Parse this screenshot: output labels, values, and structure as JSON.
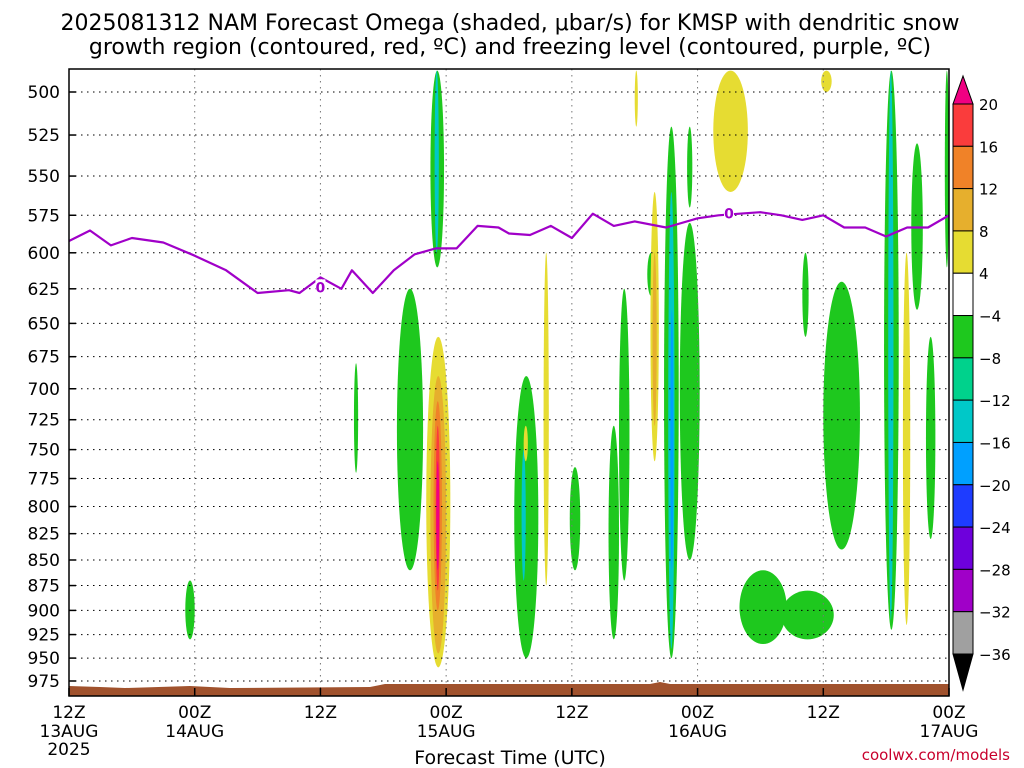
{
  "chart_data": {
    "type": "heatmap",
    "title_line1": "2025081312 NAM Forecast Omega (shaded, μbar/s) for KMSP with dendritic snow",
    "title_line2": "growth region (contoured, red, ºC) and freezing level (contoured, purple, ºC)",
    "xlabel": "Forecast Time (UTC)",
    "credit": "coolwx.com/models",
    "x_ticks": [
      {
        "hour": 0,
        "line1": "12Z",
        "line2": "13AUG",
        "line3": "2025"
      },
      {
        "hour": 12,
        "line1": "00Z",
        "line2": "14AUG",
        "line3": ""
      },
      {
        "hour": 24,
        "line1": "12Z",
        "line2": "",
        "line3": ""
      },
      {
        "hour": 36,
        "line1": "00Z",
        "line2": "15AUG",
        "line3": ""
      },
      {
        "hour": 48,
        "line1": "12Z",
        "line2": "",
        "line3": ""
      },
      {
        "hour": 60,
        "line1": "00Z",
        "line2": "16AUG",
        "line3": ""
      },
      {
        "hour": 72,
        "line1": "12Z",
        "line2": "",
        "line3": ""
      },
      {
        "hour": 84,
        "line1": "00Z",
        "line2": "17AUG",
        "line3": ""
      }
    ],
    "xlim": [
      0,
      84
    ],
    "y_ticks": [
      500,
      525,
      550,
      575,
      600,
      625,
      650,
      675,
      700,
      725,
      750,
      775,
      800,
      825,
      850,
      875,
      900,
      925,
      950,
      975
    ],
    "ylim": [
      488,
      990
    ],
    "y_scale": "log-pressure",
    "grid": true,
    "colorbar": {
      "levels": [
        -36,
        -32,
        -28,
        -24,
        -20,
        -16,
        -12,
        -8,
        -4,
        4,
        8,
        12,
        16,
        20
      ],
      "labels": [
        "20",
        "16",
        "12",
        "8",
        "4",
        "−4",
        "−8",
        "−12",
        "−16",
        "−20",
        "−24",
        "−28",
        "−32",
        "−36"
      ],
      "colors_low_to_high": [
        "#000000",
        "#a0a0a0",
        "#a000c8",
        "#6e00dc",
        "#1e3cff",
        "#00a0ff",
        "#00c8c8",
        "#00d28c",
        "#1ec81e",
        "#ffffff",
        "#e6dc32",
        "#e6af2d",
        "#f08228",
        "#fa3c3c",
        "#f00082"
      ]
    },
    "freezing_level": {
      "label": "0",
      "color": "#a000c8",
      "hours": [
        0,
        2,
        4,
        6,
        9,
        12,
        15,
        18,
        21,
        22,
        24,
        26,
        27,
        29,
        31,
        33,
        35,
        37,
        39,
        41,
        42,
        44,
        46,
        48,
        50,
        52,
        54,
        57,
        60,
        62,
        64,
        66,
        68,
        70,
        72,
        74,
        76,
        78,
        80,
        82,
        84
      ],
      "pressure": [
        592,
        585,
        595,
        590,
        593,
        602,
        612,
        628,
        626,
        628,
        617,
        625,
        612,
        628,
        612,
        601,
        597,
        597,
        582,
        583,
        587,
        588,
        582,
        590,
        574,
        582,
        579,
        583,
        577,
        575,
        574,
        573,
        575,
        578,
        575,
        583,
        583,
        589,
        583,
        583,
        575
      ]
    },
    "omega_regions": [
      {
        "value": -6,
        "h": [
          34.5,
          35.8
        ],
        "p": [
          488,
          610
        ]
      },
      {
        "value": -13,
        "h": [
          34.9,
          35.3
        ],
        "p": [
          488,
          600
        ]
      },
      {
        "value": -6,
        "h": [
          31.3,
          33.8
        ],
        "p": [
          625,
          860
        ]
      },
      {
        "value": -6,
        "h": [
          27.2,
          27.6
        ],
        "p": [
          680,
          770
        ]
      },
      {
        "value": -6,
        "h": [
          11.1,
          12.0
        ],
        "p": [
          870,
          930
        ]
      },
      {
        "value": -6,
        "h": [
          42.5,
          44.8
        ],
        "p": [
          690,
          950
        ]
      },
      {
        "value": -13,
        "h": [
          43.2,
          43.6
        ],
        "p": [
          750,
          870
        ]
      },
      {
        "value": -6,
        "h": [
          47.8,
          48.8
        ],
        "p": [
          765,
          860
        ]
      },
      {
        "value": -6,
        "h": [
          52.5,
          53.5
        ],
        "p": [
          625,
          870
        ]
      },
      {
        "value": -6,
        "h": [
          55.2,
          55.9
        ],
        "p": [
          600,
          630
        ]
      },
      {
        "value": -6,
        "h": [
          51.5,
          52.5
        ],
        "p": [
          730,
          930
        ]
      },
      {
        "value": -6,
        "h": [
          56.8,
          58.2
        ],
        "p": [
          520,
          950
        ]
      },
      {
        "value": -13,
        "h": [
          57.2,
          57.8
        ],
        "p": [
          560,
          940
        ]
      },
      {
        "value": -18,
        "h": [
          57.4,
          57.7
        ],
        "p": [
          640,
          860
        ]
      },
      {
        "value": -6,
        "h": [
          58.3,
          60.2
        ],
        "p": [
          580,
          850
        ]
      },
      {
        "value": -6,
        "h": [
          59.0,
          59.5
        ],
        "p": [
          520,
          570
        ]
      },
      {
        "value": -6,
        "h": [
          64.0,
          68.5
        ],
        "p": [
          860,
          935
        ]
      },
      {
        "value": -6,
        "h": [
          68.0,
          73.0
        ],
        "p": [
          880,
          930
        ]
      },
      {
        "value": -6,
        "h": [
          70.0,
          70.6
        ],
        "p": [
          600,
          660
        ]
      },
      {
        "value": -6,
        "h": [
          72.0,
          75.5
        ],
        "p": [
          620,
          840
        ]
      },
      {
        "value": -6,
        "h": [
          77.8,
          79.2
        ],
        "p": [
          488,
          920
        ]
      },
      {
        "value": -13,
        "h": [
          78.2,
          78.7
        ],
        "p": [
          488,
          910
        ]
      },
      {
        "value": -6,
        "h": [
          80.4,
          81.5
        ],
        "p": [
          530,
          640
        ]
      },
      {
        "value": -6,
        "h": [
          81.8,
          82.7
        ],
        "p": [
          660,
          830
        ]
      },
      {
        "value": -6,
        "h": [
          83.6,
          84.0
        ],
        "p": [
          488,
          610
        ]
      },
      {
        "value": -6,
        "h": [
          84.0,
          84.0
        ],
        "p": [
          925,
          950
        ]
      }
    ],
    "omega_positive": [
      {
        "value": 5,
        "h": [
          34.1,
          36.4
        ],
        "p": [
          660,
          960
        ]
      },
      {
        "value": 9,
        "h": [
          34.5,
          36.0
        ],
        "p": [
          690,
          945
        ]
      },
      {
        "value": 13,
        "h": [
          34.8,
          35.6
        ],
        "p": [
          710,
          900
        ]
      },
      {
        "value": 18,
        "h": [
          35.0,
          35.4
        ],
        "p": [
          730,
          880
        ]
      },
      {
        "value": 21,
        "h": [
          35.1,
          35.3
        ],
        "p": [
          760,
          860
        ]
      },
      {
        "value": 5,
        "h": [
          55.5,
          56.3
        ],
        "p": [
          560,
          760
        ]
      },
      {
        "value": 9,
        "h": [
          55.7,
          56.1
        ],
        "p": [
          600,
          730
        ]
      },
      {
        "value": 5,
        "h": [
          45.3,
          45.8
        ],
        "p": [
          600,
          875
        ]
      },
      {
        "value": 5,
        "h": [
          61.5,
          64.8
        ],
        "p": [
          488,
          560
        ]
      },
      {
        "value": 5,
        "h": [
          54.0,
          54.3
        ],
        "p": [
          488,
          520
        ]
      },
      {
        "value": 5,
        "h": [
          71.8,
          72.8
        ],
        "p": [
          488,
          500
        ]
      },
      {
        "value": 5,
        "h": [
          79.6,
          80.3
        ],
        "p": [
          600,
          915
        ]
      },
      {
        "value": 5,
        "h": [
          43.4,
          43.8
        ],
        "p": [
          730,
          760
        ]
      }
    ],
    "terrain": {
      "color": "#a0522d",
      "surface_pressure": 985
    }
  }
}
